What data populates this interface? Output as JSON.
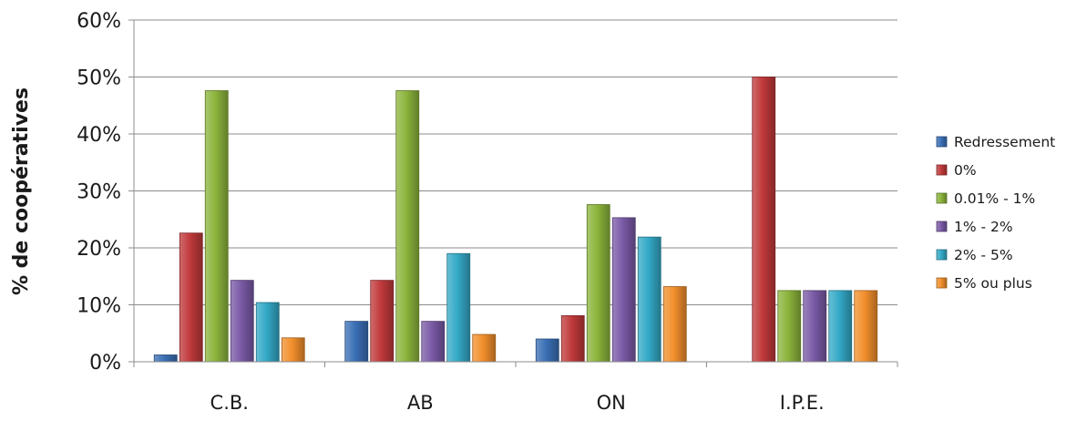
{
  "chart_data": {
    "type": "bar",
    "categories": [
      "C.B.",
      "AB",
      "ON",
      "I.P.E."
    ],
    "series": [
      {
        "name": "Redressement",
        "values": [
          1.2,
          7.1,
          4.0,
          0
        ],
        "color": "#3a6fb5"
      },
      {
        "name": "0%",
        "values": [
          22.6,
          14.3,
          8.1,
          50.0
        ],
        "color": "#c0393b"
      },
      {
        "name": "0.01% - 1%",
        "values": [
          47.6,
          47.6,
          27.6,
          12.5
        ],
        "color": "#8cb43c"
      },
      {
        "name": "1% - 2%",
        "values": [
          14.3,
          7.1,
          25.3,
          12.5
        ],
        "color": "#7a5aa6"
      },
      {
        "name": "2% - 5%",
        "values": [
          10.4,
          19.0,
          21.9,
          12.5
        ],
        "color": "#34a9c7"
      },
      {
        "name": "5% ou plus",
        "values": [
          4.2,
          4.8,
          13.2,
          12.5
        ],
        "color": "#f28f2c"
      }
    ],
    "ylabel": "% de coopératives",
    "ylim": [
      0,
      60
    ],
    "yticks": [
      "0%",
      "10%",
      "20%",
      "30%",
      "40%",
      "50%",
      "60%"
    ],
    "grid": true,
    "legend_position": "right"
  }
}
